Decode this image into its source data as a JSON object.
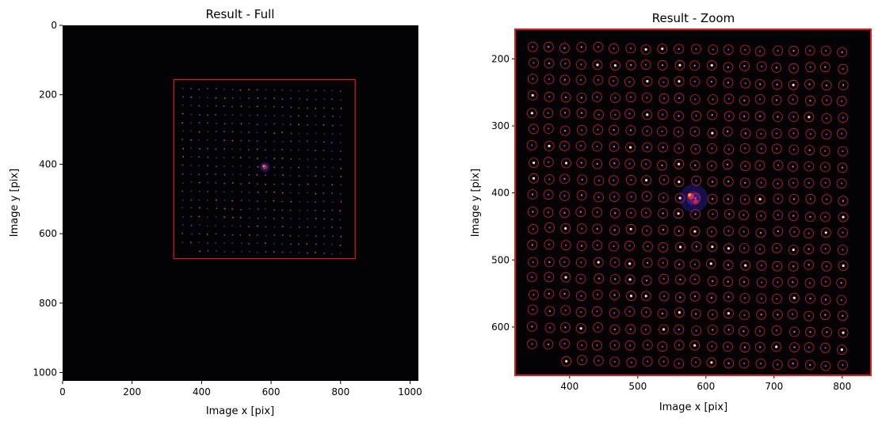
{
  "chart_data": [
    {
      "type": "image",
      "title": "Result - Full",
      "xlabel": "Image x [pix]",
      "ylabel": "Image y [pix]",
      "xlim": [
        0,
        1024
      ],
      "ylim": [
        1024,
        0
      ],
      "xticks": [
        0,
        200,
        400,
        600,
        800,
        1000
      ],
      "yticks": [
        0,
        200,
        400,
        600,
        800,
        1000
      ],
      "background": "#030306",
      "roi_box": {
        "x0": 320,
        "x1": 842,
        "y0": 156,
        "y1": 672,
        "color": "#e31a1c"
      },
      "grid": {
        "x0": 346,
        "dx": 23.9,
        "y0": 182,
        "dy": 24.6,
        "cols": 20,
        "rows": 20
      },
      "bright_spot": {
        "x": 582,
        "y": 408
      }
    },
    {
      "type": "image",
      "title": "Result - Zoom",
      "xlabel": "Image x [pix]",
      "ylabel": "Image y [pix]",
      "xlim": [
        320,
        842
      ],
      "ylim": [
        672,
        156
      ],
      "xticks": [
        400,
        500,
        600,
        700,
        800
      ],
      "yticks": [
        200,
        300,
        400,
        500,
        600
      ],
      "background": "#030306",
      "frame_color": "#e31a1c",
      "marker_color": "#e31a1c",
      "grid": {
        "x0": 346,
        "dx": 23.9,
        "y0": 182,
        "dy": 24.6,
        "cols": 20,
        "rows": 20
      },
      "bright_spot": {
        "x": 582,
        "y": 408
      }
    }
  ]
}
